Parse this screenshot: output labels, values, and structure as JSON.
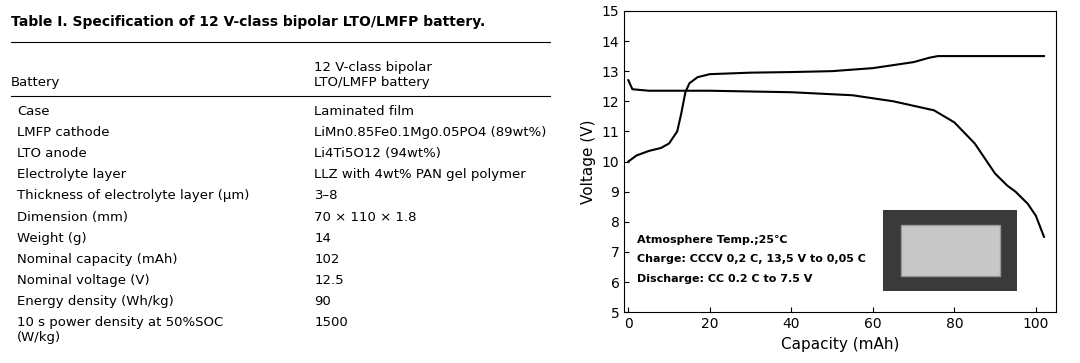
{
  "table": {
    "title": "Table I. Specification of 12 V-class bipolar LTO/LMFP battery.",
    "header": [
      "Battery",
      "12 V-class bipolar\nLTO/LMFP battery"
    ],
    "rows": [
      [
        "Case",
        "Laminated film"
      ],
      [
        "LMFP cathode",
        "LiMn0.85Fe0.1Mg0.05PO4 (89wt%)"
      ],
      [
        "LTO anode",
        "Li4Ti5O12 (94wt%)"
      ],
      [
        "Electrolyte layer",
        "LLZ with 4wt% PAN gel polymer"
      ],
      [
        "Thickness of electrolyte layer (µm)",
        "3–8"
      ],
      [
        "Dimension (mm)",
        "70 × 110 × 1.8"
      ],
      [
        "Weight (g)",
        "14"
      ],
      [
        "Nominal capacity (mAh)",
        "102"
      ],
      [
        "Nominal voltage (V)",
        "12.5"
      ],
      [
        "Energy density (Wh/kg)",
        "90"
      ],
      [
        "10 s power density at 50%SOC\n(W/kg)",
        "1500"
      ]
    ]
  },
  "chart_data": {
    "type": "line",
    "x_label": "Capacity (mAh)",
    "y_label": "Voltage (V)",
    "xlim": [
      -1,
      105
    ],
    "xticks": [
      0,
      20,
      40,
      60,
      80,
      100
    ],
    "ylim": [
      5,
      15
    ],
    "yticks": [
      5,
      6,
      7,
      8,
      9,
      10,
      11,
      12,
      13,
      14,
      15
    ],
    "annotations": [
      "Atmosphere Temp.;25℃",
      "Charge: CCCV 0,2 C, 13,5 V to 0,05 C",
      "Discharge: CC 0.2 C to 7.5 V"
    ],
    "series": [
      {
        "color": "#000000",
        "x": [
          0,
          2,
          5,
          8,
          10,
          12,
          13,
          14,
          15,
          17,
          20,
          30,
          40,
          50,
          60,
          65,
          70,
          74,
          76,
          80,
          90,
          102
        ],
        "values": [
          10.0,
          10.2,
          10.35,
          10.45,
          10.6,
          11.0,
          11.6,
          12.3,
          12.6,
          12.8,
          12.9,
          12.95,
          12.97,
          13.0,
          13.1,
          13.2,
          13.3,
          13.45,
          13.5,
          13.5,
          13.5,
          13.5
        ]
      },
      {
        "color": "#000000",
        "x": [
          0,
          1,
          5,
          20,
          40,
          55,
          65,
          75,
          80,
          85,
          88,
          90,
          93,
          95,
          98,
          100,
          102
        ],
        "values": [
          12.7,
          12.4,
          12.35,
          12.35,
          12.3,
          12.2,
          12.0,
          11.7,
          11.3,
          10.6,
          10.0,
          9.6,
          9.2,
          9.0,
          8.6,
          8.2,
          7.5
        ]
      }
    ]
  }
}
